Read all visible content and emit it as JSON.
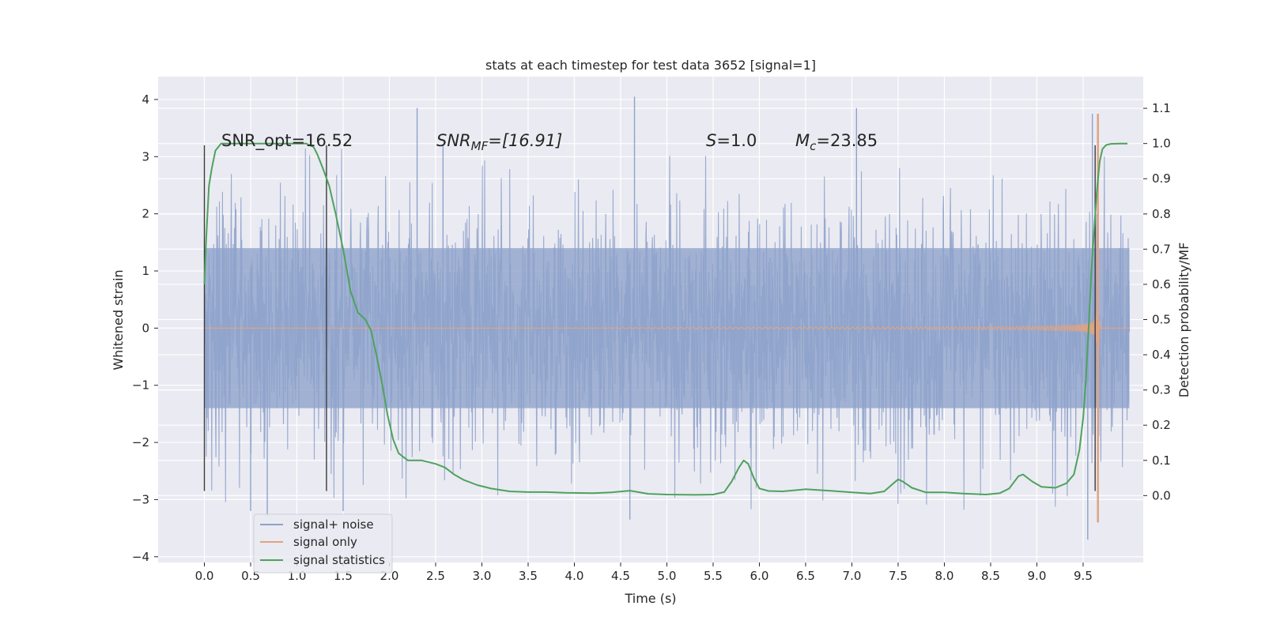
{
  "chart_data": {
    "type": "line",
    "title": "stats at each timestep for test data 3652 [signal=1]",
    "xlabel": "Time (s)",
    "ylabel": "Whitened strain",
    "ylabel_right": "Detection probability/MF",
    "xlim": [
      -0.5,
      10.15
    ],
    "ylim": [
      -4.1,
      4.4
    ],
    "ylim_right": [
      -0.19,
      1.19
    ],
    "x_ticks": [
      "0.0",
      "0.5",
      "1.0",
      "1.5",
      "2.0",
      "2.5",
      "3.0",
      "3.5",
      "4.0",
      "4.5",
      "5.0",
      "5.5",
      "6.0",
      "6.5",
      "7.0",
      "7.5",
      "8.0",
      "8.5",
      "9.0",
      "9.5"
    ],
    "x_tick_values": [
      0.0,
      0.5,
      1.0,
      1.5,
      2.0,
      2.5,
      3.0,
      3.5,
      4.0,
      4.5,
      5.0,
      5.5,
      6.0,
      6.5,
      7.0,
      7.5,
      8.0,
      8.5,
      9.0,
      9.5
    ],
    "y_ticks": [
      "4",
      "3",
      "2",
      "1",
      "0",
      "−1",
      "−2",
      "−3",
      "−4"
    ],
    "y_tick_values": [
      4,
      3,
      2,
      1,
      0,
      -1,
      -2,
      -3,
      -4
    ],
    "y_right_ticks": [
      "1.1",
      "1.0",
      "0.9",
      "0.8",
      "0.7",
      "0.6",
      "0.5",
      "0.4",
      "0.3",
      "0.2",
      "0.1",
      "0.0"
    ],
    "y_right_tick_values": [
      1.1,
      1.0,
      0.9,
      0.8,
      0.7,
      0.6,
      0.5,
      0.4,
      0.3,
      0.2,
      0.1,
      0.0
    ],
    "grid": true,
    "legend_position": "lower-left",
    "annotations": {
      "snr_opt": "SNR_opt=16.52",
      "snr_mf_base": "SNR",
      "snr_mf_sub": "MF",
      "snr_mf_value": "=[16.91]",
      "s_base": "S",
      "s_value": "=1.0",
      "mc_base": "M",
      "mc_sub": "c",
      "mc_value": "=23.85"
    },
    "vlines": {
      "x": [
        0.0,
        1.32,
        9.63
      ],
      "ymin": -2.85,
      "ymax": 3.2
    },
    "series": [
      {
        "name": "signal+ noise",
        "color": "#8fa3cb",
        "kind": "noise",
        "x_range": [
          0.0,
          10.0
        ],
        "envelope": 1.4,
        "spike_range": [
          -3.7,
          4.05
        ]
      },
      {
        "name": "signal only",
        "color": "#e0a382",
        "kind": "chirp",
        "x_range": [
          0.0,
          10.0
        ],
        "merger_time": 9.65,
        "peak_range": [
          -3.4,
          3.75
        ]
      },
      {
        "name": "signal statistics",
        "color": "#4ea25e",
        "kind": "probability",
        "axis": "right",
        "x": [
          0.0,
          0.02,
          0.05,
          0.08,
          0.12,
          0.18,
          0.25,
          0.4,
          0.6,
          0.8,
          1.0,
          1.1,
          1.18,
          1.22,
          1.28,
          1.35,
          1.42,
          1.5,
          1.58,
          1.66,
          1.74,
          1.8,
          1.86,
          1.92,
          1.98,
          2.04,
          2.1,
          2.2,
          2.35,
          2.5,
          2.6,
          2.7,
          2.8,
          2.95,
          3.1,
          3.3,
          3.5,
          3.7,
          3.9,
          4.2,
          4.4,
          4.6,
          4.8,
          5.0,
          5.3,
          5.5,
          5.62,
          5.7,
          5.78,
          5.83,
          5.88,
          5.94,
          6.0,
          6.1,
          6.25,
          6.5,
          6.8,
          7.0,
          7.2,
          7.35,
          7.45,
          7.5,
          7.55,
          7.65,
          7.8,
          8.0,
          8.2,
          8.45,
          8.6,
          8.7,
          8.8,
          8.85,
          8.95,
          9.05,
          9.2,
          9.32,
          9.4,
          9.46,
          9.5,
          9.53,
          9.56,
          9.59,
          9.62,
          9.65,
          9.68,
          9.71,
          9.75,
          9.8,
          9.9,
          9.98
        ],
        "y": [
          0.6,
          0.73,
          0.88,
          0.93,
          0.98,
          1.0,
          1.0,
          1.0,
          1.0,
          1.0,
          1.0,
          1.0,
          0.99,
          0.97,
          0.93,
          0.88,
          0.8,
          0.7,
          0.58,
          0.52,
          0.5,
          0.47,
          0.4,
          0.32,
          0.23,
          0.16,
          0.12,
          0.1,
          0.1,
          0.09,
          0.08,
          0.06,
          0.045,
          0.03,
          0.02,
          0.012,
          0.01,
          0.01,
          0.008,
          0.007,
          0.009,
          0.014,
          0.005,
          0.003,
          0.002,
          0.003,
          0.01,
          0.04,
          0.08,
          0.1,
          0.09,
          0.05,
          0.02,
          0.013,
          0.012,
          0.018,
          0.013,
          0.009,
          0.006,
          0.012,
          0.035,
          0.046,
          0.04,
          0.022,
          0.009,
          0.009,
          0.006,
          0.003,
          0.007,
          0.02,
          0.055,
          0.06,
          0.04,
          0.025,
          0.022,
          0.035,
          0.06,
          0.13,
          0.22,
          0.33,
          0.48,
          0.64,
          0.76,
          0.87,
          0.95,
          0.985,
          0.996,
          0.999,
          1.0,
          1.0
        ]
      }
    ]
  }
}
